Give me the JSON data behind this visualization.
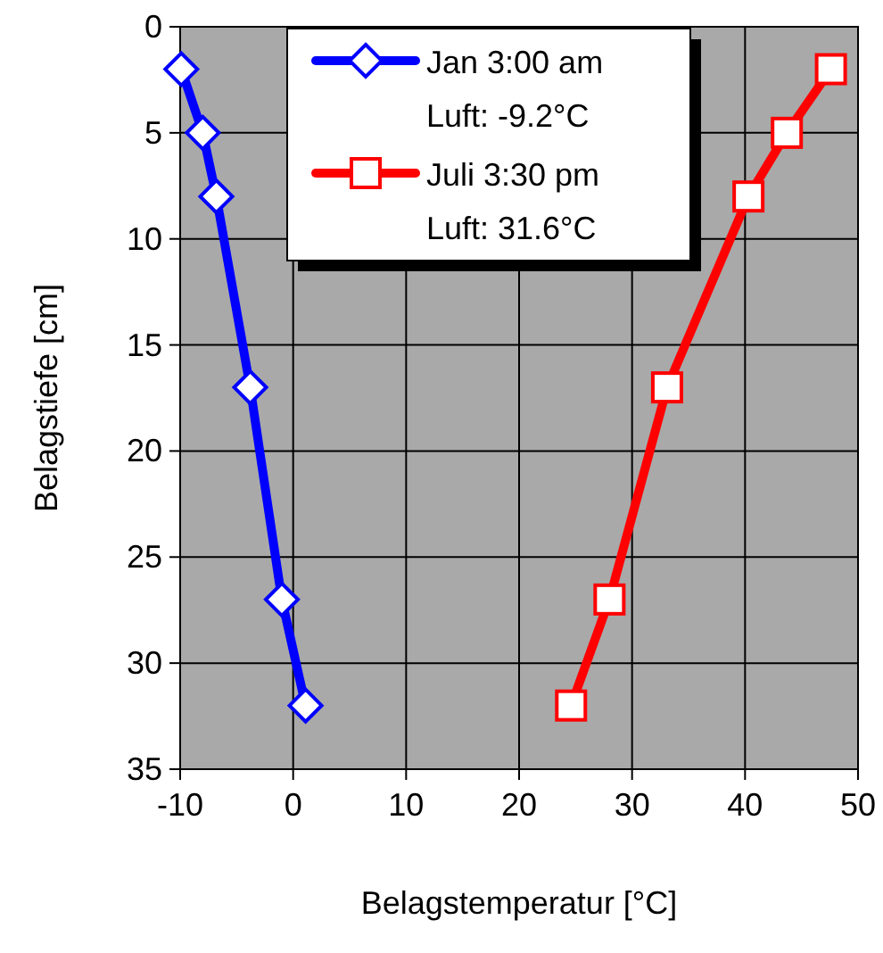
{
  "chart_data": {
    "type": "line",
    "xlabel": "Belagstemperatur [°C]",
    "ylabel": "Belagstiefe [cm]",
    "xlim": [
      -10,
      50
    ],
    "xticks": [
      -10,
      0,
      10,
      20,
      30,
      40,
      50
    ],
    "ylim": [
      35,
      0
    ],
    "yticks": [
      0,
      5,
      10,
      15,
      20,
      25,
      30,
      35
    ],
    "grid": true,
    "legend": "top",
    "series": [
      {
        "name": "Jan 3:00 am\nLuft: -9.2°C",
        "color": "#0000ff",
        "marker": "diamond",
        "x": [
          -9.9,
          -8.0,
          -6.8,
          -3.8,
          -1.0,
          1.1
        ],
        "values": [
          2,
          5,
          8,
          17,
          27,
          32
        ]
      },
      {
        "name": "Juli 3:30 pm\nLuft: 31.6°C",
        "color": "#ff0000",
        "marker": "square",
        "x": [
          47.6,
          43.7,
          40.3,
          33.1,
          28.0,
          24.6
        ],
        "values": [
          2,
          5,
          8,
          17,
          27,
          32
        ]
      }
    ]
  }
}
